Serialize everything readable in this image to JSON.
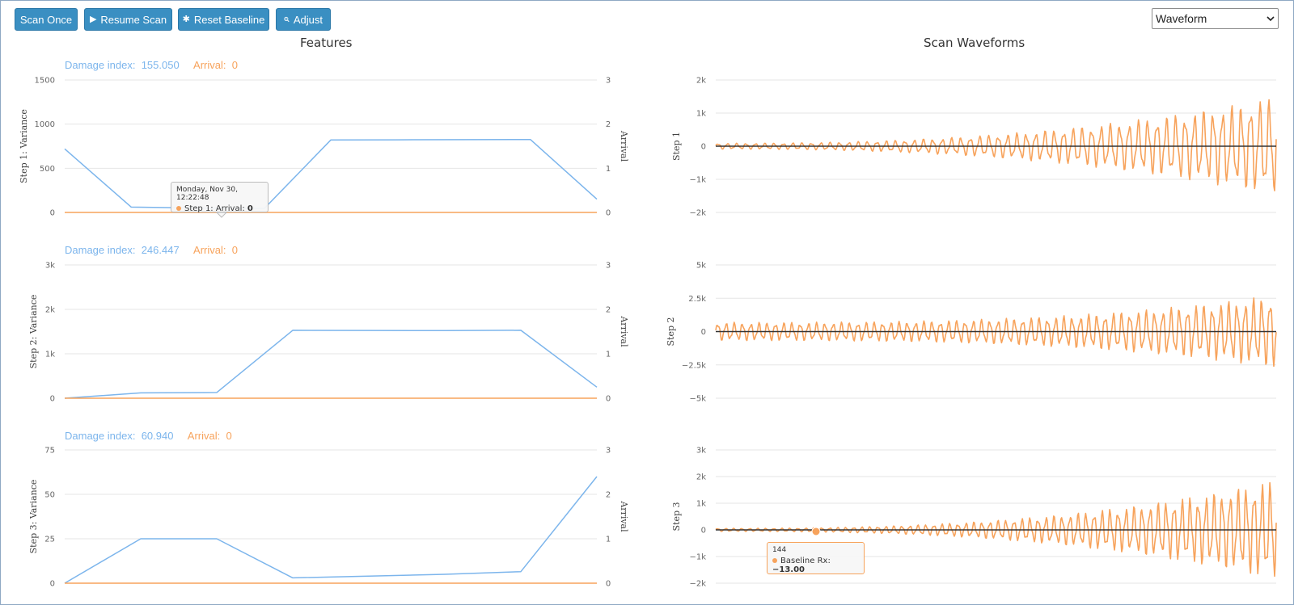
{
  "toolbar": {
    "scan_once": "Scan Once",
    "resume_scan": "Resume Scan",
    "reset_baseline": "Reset Baseline",
    "adjust": "Adjust",
    "view_select": "Waveform",
    "icons": {
      "resume": "play-icon",
      "reset": "asterisk-icon",
      "adjust": "zoom-in-icon"
    }
  },
  "colors": {
    "blue": "#7cb5ec",
    "orange": "#f7a35c",
    "black": "#333333",
    "button": "#3a8fc2"
  },
  "features": {
    "title": "Features",
    "rows": [
      {
        "damage_label": "Damage index:",
        "damage_value": "155.050",
        "arrival_label": "Arrival:",
        "arrival_value": "0"
      },
      {
        "damage_label": "Damage index:",
        "damage_value": "246.447",
        "arrival_label": "Arrival:",
        "arrival_value": "0"
      },
      {
        "damage_label": "Damage index:",
        "damage_value": "60.940",
        "arrival_label": "Arrival:",
        "arrival_value": "0"
      }
    ]
  },
  "waveforms": {
    "title": "Scan Waveforms"
  },
  "tooltips": {
    "feature": {
      "date": "Monday, Nov 30, 12:22:48",
      "series": "Step 1: Arrival:",
      "value": "0"
    },
    "waveform": {
      "x": "144",
      "series": "Baseline Rx:",
      "value": "−13.00"
    }
  },
  "chart_data": [
    {
      "type": "line",
      "ylabel": "Step 1: Variance",
      "ylabel_right": "Arrival",
      "ylim": [
        0,
        1500
      ],
      "yticks": [
        "0",
        "500",
        "1000",
        "1500"
      ],
      "ylim_right": [
        0,
        3
      ],
      "yticks_right": [
        "0",
        "1",
        "2",
        "3"
      ],
      "series": [
        {
          "color": "#7cb5ec",
          "values": [
            720,
            60,
            50,
            45,
            820,
            822,
            824,
            826,
            150
          ]
        },
        {
          "color": "#f7a35c",
          "axis": "right",
          "values": [
            0,
            0,
            0,
            0,
            0,
            0,
            0,
            0,
            0
          ]
        }
      ]
    },
    {
      "type": "line",
      "ylabel": "Step 2: Variance",
      "ylabel_right": "Arrival",
      "ylim": [
        0,
        3000
      ],
      "yticks": [
        "0",
        "1k",
        "2k",
        "3k"
      ],
      "ylim_right": [
        0,
        3
      ],
      "yticks_right": [
        "0",
        "1",
        "2",
        "3"
      ],
      "series": [
        {
          "color": "#7cb5ec",
          "values": [
            0,
            120,
            130,
            1530,
            1525,
            1522,
            1530,
            250
          ]
        },
        {
          "color": "#f7a35c",
          "axis": "right",
          "values": [
            0,
            0,
            0,
            0,
            0,
            0,
            0,
            0
          ]
        }
      ]
    },
    {
      "type": "line",
      "ylabel": "Step 3: Variance",
      "ylabel_right": "Arrival",
      "ylim": [
        0,
        75
      ],
      "yticks": [
        "0",
        "25",
        "50",
        "75"
      ],
      "ylim_right": [
        0,
        3
      ],
      "yticks_right": [
        "0",
        "1",
        "2",
        "3"
      ],
      "series": [
        {
          "color": "#7cb5ec",
          "values": [
            0,
            25,
            25,
            3,
            4,
            5,
            6.5,
            60
          ]
        },
        {
          "color": "#f7a35c",
          "axis": "right",
          "values": [
            0,
            0,
            0,
            0,
            0,
            0,
            0,
            0
          ]
        }
      ]
    },
    {
      "type": "line",
      "ylabel": "Step 1",
      "ylim": [
        -2000,
        2000
      ],
      "yticks": [
        "−2k",
        "−1k",
        "0",
        "1k",
        "2k"
      ],
      "series": [
        {
          "name": "Baseline Rx",
          "color": "#f7a35c",
          "waveform": {
            "start_amp": 90,
            "end_amp": 1500,
            "growth": 2.4,
            "cycles": 60
          }
        },
        {
          "color": "#333333",
          "values": [
            0,
            0
          ]
        }
      ]
    },
    {
      "type": "line",
      "ylabel": "Step 2",
      "ylim": [
        -5000,
        5000
      ],
      "yticks": [
        "−5k",
        "−2.5k",
        "0",
        "2.5k",
        "5k"
      ],
      "series": [
        {
          "name": "Baseline Rx",
          "color": "#f7a35c",
          "waveform": {
            "start_amp": 700,
            "end_amp": 2800,
            "growth": 3.0,
            "cycles": 68
          }
        },
        {
          "color": "#333333",
          "values": [
            0,
            0
          ]
        }
      ]
    },
    {
      "type": "line",
      "ylabel": "Step 3",
      "ylim": [
        -2000,
        3000
      ],
      "yticks": [
        "−2k",
        "−1k",
        "0",
        "1k",
        "2k",
        "3k"
      ],
      "series": [
        {
          "name": "Baseline Rx",
          "color": "#f7a35c",
          "waveform": {
            "start_amp": 60,
            "end_amp": 1900,
            "growth": 2.6,
            "cycles": 70
          }
        },
        {
          "color": "#333333",
          "values": [
            0,
            0
          ]
        }
      ]
    }
  ]
}
